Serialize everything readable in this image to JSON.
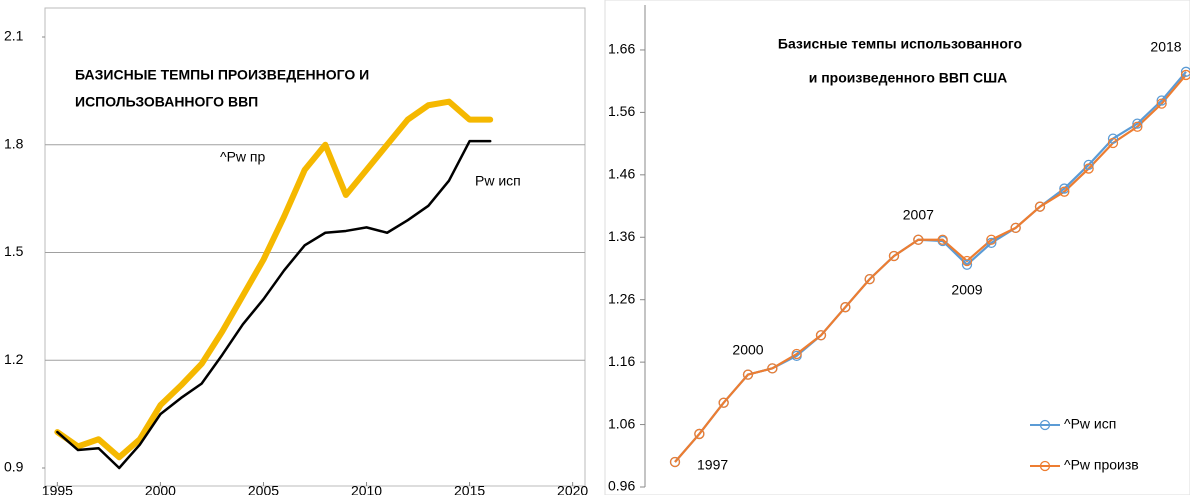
{
  "chart_data": [
    {
      "type": "line",
      "title": [
        "БАЗИСНЫЕ  ТЕМПЫ  ПРОИЗВЕДЕННОГО И",
        "ИСПОЛЬЗОВАННОГО ВВП"
      ],
      "x": [
        1995,
        1996,
        1997,
        1998,
        1999,
        2000,
        2001,
        2002,
        2003,
        2004,
        2005,
        2006,
        2007,
        2008,
        2009,
        2010,
        2011,
        2012,
        2013,
        2014,
        2015,
        2016
      ],
      "series": [
        {
          "name": "^Pw пр",
          "color": "#f5b800",
          "values": [
            1.0,
            0.96,
            0.98,
            0.93,
            0.98,
            1.075,
            1.13,
            1.19,
            1.28,
            1.38,
            1.48,
            1.6,
            1.73,
            1.8,
            1.66,
            1.73,
            1.8,
            1.87,
            1.91,
            1.92,
            1.87,
            1.87
          ]
        },
        {
          "name": "Pw исп",
          "color": "#000000",
          "values": [
            1.0,
            0.95,
            0.955,
            0.9,
            0.965,
            1.05,
            1.095,
            1.135,
            1.215,
            1.3,
            1.37,
            1.45,
            1.52,
            1.555,
            1.56,
            1.57,
            1.555,
            1.59,
            1.63,
            1.7,
            1.81,
            1.81
          ]
        }
      ],
      "xlim": [
        1994.4,
        2020.6
      ],
      "xticks": [
        1995,
        2000,
        2005,
        2010,
        2015,
        2020
      ],
      "ylim": [
        0.9,
        2.1
      ],
      "yticks": [
        0.9,
        1.2,
        1.5,
        1.8,
        2.1
      ],
      "grid": true
    },
    {
      "type": "line-markers",
      "title": [
        "Базисные темпы использованного",
        "и произведенного ВВП США"
      ],
      "categories": [
        "1997",
        null,
        null,
        "2000",
        null,
        null,
        null,
        null,
        null,
        null,
        "2007",
        null,
        "2009",
        null,
        null,
        null,
        null,
        null,
        null,
        null,
        null,
        "2018"
      ],
      "series": [
        {
          "name": "^Pw исп",
          "color": "#5b9bd5",
          "values": [
            1.0,
            1.045,
            1.095,
            1.14,
            1.15,
            1.17,
            1.203,
            1.248,
            1.293,
            1.33,
            1.356,
            1.354,
            1.316,
            1.351,
            1.375,
            1.409,
            1.438,
            1.476,
            1.518,
            1.542,
            1.579,
            1.625
          ]
        },
        {
          "name": "^Pw произв",
          "color": "#ed7d31",
          "values": [
            1.0,
            1.045,
            1.095,
            1.14,
            1.15,
            1.173,
            1.203,
            1.248,
            1.293,
            1.33,
            1.356,
            1.356,
            1.322,
            1.356,
            1.375,
            1.409,
            1.433,
            1.47,
            1.511,
            1.537,
            1.574,
            1.62
          ]
        }
      ],
      "ylim": [
        0.96,
        1.72
      ],
      "yticks": [
        0.96,
        1.06,
        1.16,
        1.26,
        1.36,
        1.46,
        1.56,
        1.66
      ],
      "legend": "bottom-right"
    }
  ]
}
